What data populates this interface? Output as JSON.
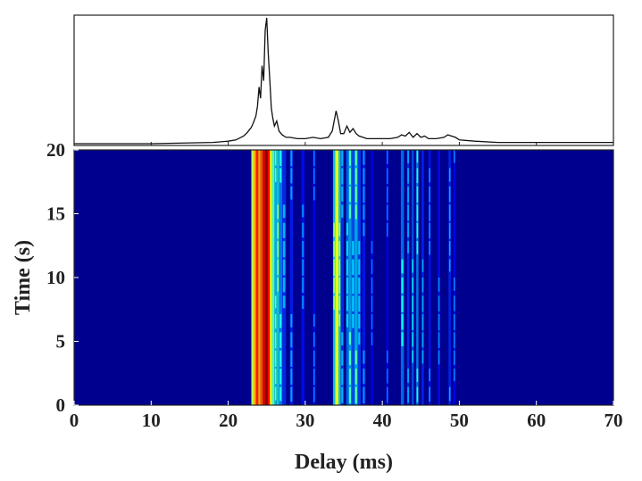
{
  "chart_data": [
    {
      "type": "line",
      "title": "",
      "xlabel": "",
      "ylabel": "",
      "xlim": [
        0,
        70
      ],
      "description_series": [
        {
          "name": "",
          "x": [
            0,
            10,
            18,
            20,
            21,
            22,
            22.5,
            23,
            23.3,
            23.6,
            23.8,
            24.0,
            24.2,
            24.4,
            24.6,
            24.8,
            25.0,
            25.2,
            25.4,
            25.6,
            25.8,
            26.0,
            26.3,
            26.6,
            27.0,
            27.5,
            28,
            29,
            30,
            31,
            32,
            33,
            33.5,
            34.0,
            34.3,
            34.6,
            35.0,
            35.4,
            35.8,
            36.2,
            36.6,
            37.0,
            37.5,
            38,
            39,
            40,
            41,
            42,
            42.5,
            43,
            43.5,
            44,
            44.5,
            45,
            45.5,
            46,
            47,
            48,
            48.5,
            49,
            49.5,
            50,
            52,
            55,
            60,
            65,
            70
          ],
          "y": [
            0.0,
            0.0,
            0.01,
            0.02,
            0.03,
            0.06,
            0.09,
            0.13,
            0.17,
            0.22,
            0.3,
            0.45,
            0.36,
            0.62,
            0.5,
            0.9,
            1.0,
            0.72,
            0.5,
            0.28,
            0.2,
            0.14,
            0.18,
            0.1,
            0.07,
            0.05,
            0.05,
            0.04,
            0.04,
            0.05,
            0.04,
            0.05,
            0.1,
            0.26,
            0.18,
            0.08,
            0.08,
            0.14,
            0.09,
            0.12,
            0.08,
            0.06,
            0.05,
            0.04,
            0.04,
            0.04,
            0.04,
            0.05,
            0.07,
            0.06,
            0.09,
            0.05,
            0.08,
            0.05,
            0.06,
            0.04,
            0.04,
            0.05,
            0.07,
            0.06,
            0.05,
            0.03,
            0.02,
            0.01,
            0.01,
            0.01,
            0.01
          ]
        }
      ]
    },
    {
      "type": "heatmap",
      "title": "",
      "xlabel": "Delay (ms)",
      "ylabel": "Time (s)",
      "xlim": [
        0,
        70
      ],
      "ylim": [
        0,
        20
      ],
      "xticks": [
        "0",
        "10",
        "20",
        "30",
        "40",
        "50",
        "60",
        "70"
      ],
      "yticks": [
        "0",
        "5",
        "10",
        "15",
        "20"
      ],
      "colormap": "jet",
      "background_color": "#00008f",
      "bands": [
        {
          "x_start": 23.0,
          "x_end": 23.3,
          "intensity": 0.55
        },
        {
          "x_start": 23.3,
          "x_end": 23.6,
          "intensity": 0.7
        },
        {
          "x_start": 23.6,
          "x_end": 23.9,
          "intensity": 0.85
        },
        {
          "x_start": 23.9,
          "x_end": 24.2,
          "intensity": 0.72
        },
        {
          "x_start": 24.2,
          "x_end": 24.5,
          "intensity": 0.8
        },
        {
          "x_start": 24.5,
          "x_end": 24.8,
          "intensity": 0.92
        },
        {
          "x_start": 24.8,
          "x_end": 25.1,
          "intensity": 1.0
        },
        {
          "x_start": 25.1,
          "x_end": 25.4,
          "intensity": 0.88
        },
        {
          "x_start": 25.4,
          "x_end": 25.7,
          "intensity": 0.62
        },
        {
          "x_start": 25.7,
          "x_end": 26.0,
          "intensity": 0.45
        },
        {
          "x_start": 26.0,
          "x_end": 26.3,
          "intensity": 0.35
        },
        {
          "x_start": 26.3,
          "x_end": 26.6,
          "intensity": 0.4
        },
        {
          "x_start": 26.6,
          "x_end": 27.0,
          "intensity": 0.28
        },
        {
          "x_start": 27.0,
          "x_end": 27.5,
          "intensity": 0.18
        },
        {
          "x_start": 28.0,
          "x_end": 28.4,
          "intensity": 0.16
        },
        {
          "x_start": 29.5,
          "x_end": 29.9,
          "intensity": 0.14
        },
        {
          "x_start": 31.0,
          "x_end": 31.3,
          "intensity": 0.13
        },
        {
          "x_start": 33.6,
          "x_end": 33.9,
          "intensity": 0.4
        },
        {
          "x_start": 33.9,
          "x_end": 34.3,
          "intensity": 0.6
        },
        {
          "x_start": 34.3,
          "x_end": 34.6,
          "intensity": 0.42
        },
        {
          "x_start": 34.6,
          "x_end": 35.0,
          "intensity": 0.18
        },
        {
          "x_start": 35.3,
          "x_end": 35.6,
          "intensity": 0.25
        },
        {
          "x_start": 35.6,
          "x_end": 36.0,
          "intensity": 0.32
        },
        {
          "x_start": 36.0,
          "x_end": 36.4,
          "intensity": 0.22
        },
        {
          "x_start": 36.4,
          "x_end": 36.8,
          "intensity": 0.34
        },
        {
          "x_start": 36.8,
          "x_end": 37.2,
          "intensity": 0.2
        },
        {
          "x_start": 37.4,
          "x_end": 37.8,
          "intensity": 0.15
        },
        {
          "x_start": 38.5,
          "x_end": 38.8,
          "intensity": 0.12
        },
        {
          "x_start": 40.5,
          "x_end": 40.8,
          "intensity": 0.12
        },
        {
          "x_start": 42.4,
          "x_end": 42.8,
          "intensity": 0.26
        },
        {
          "x_start": 43.2,
          "x_end": 43.5,
          "intensity": 0.18
        },
        {
          "x_start": 43.8,
          "x_end": 44.1,
          "intensity": 0.22
        },
        {
          "x_start": 44.4,
          "x_end": 44.7,
          "intensity": 0.28
        },
        {
          "x_start": 45.1,
          "x_end": 45.4,
          "intensity": 0.17
        },
        {
          "x_start": 46.0,
          "x_end": 46.3,
          "intensity": 0.15
        },
        {
          "x_start": 47.2,
          "x_end": 47.5,
          "intensity": 0.14
        },
        {
          "x_start": 48.6,
          "x_end": 48.9,
          "intensity": 0.17
        },
        {
          "x_start": 49.2,
          "x_end": 49.5,
          "intensity": 0.13
        }
      ]
    }
  ]
}
